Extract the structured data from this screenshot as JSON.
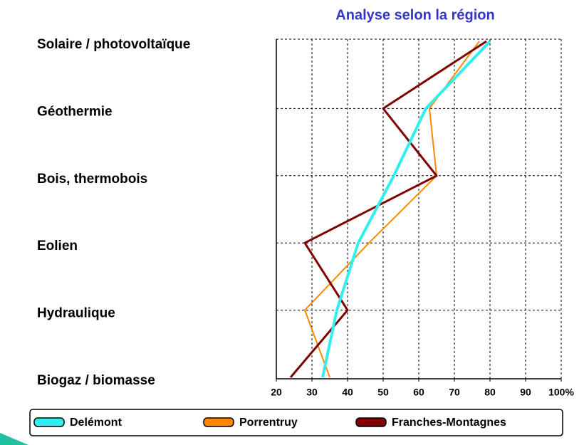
{
  "chart_data": {
    "type": "line",
    "title": "Analyse selon la région",
    "categories": [
      "Solaire / photovoltaïque",
      "Géothermie",
      "Bois, thermobois",
      "Eolien",
      "Hydraulique",
      "Biogaz / biomasse"
    ],
    "series": [
      {
        "name": "Delémont",
        "color": "#33eeee",
        "values": [
          80,
          62,
          53,
          43,
          37,
          33
        ]
      },
      {
        "name": "Porrentruy",
        "color": "#ff8800",
        "values": [
          77,
          63,
          65,
          46,
          28,
          35
        ]
      },
      {
        "name": "Franches-Montagnes",
        "color": "#800000",
        "values": [
          79,
          50,
          65,
          28,
          40,
          24
        ]
      }
    ],
    "xlim": [
      20,
      100
    ],
    "xticks": [
      20,
      30,
      40,
      50,
      60,
      70,
      80,
      90,
      {
        "value": 100,
        "label": "100%"
      }
    ],
    "grid": true
  }
}
